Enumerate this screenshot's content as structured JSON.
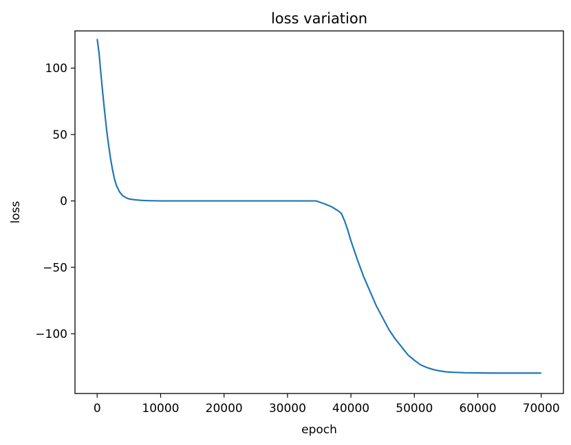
{
  "chart_data": {
    "type": "line",
    "title": "loss variation",
    "xlabel": "epoch",
    "ylabel": "loss",
    "xlim": [
      -3500,
      73500
    ],
    "ylim": [
      -145,
      128
    ],
    "grid": false,
    "x_ticks": [
      0,
      10000,
      20000,
      30000,
      40000,
      50000,
      60000,
      70000
    ],
    "x_tick_labels": [
      "0",
      "10000",
      "20000",
      "30000",
      "40000",
      "50000",
      "60000",
      "70000"
    ],
    "y_ticks": [
      100,
      50,
      0,
      -50,
      -100
    ],
    "y_tick_labels": [
      "100",
      "50",
      "0",
      "−50",
      "−100"
    ],
    "line_color": "#1f77b4",
    "series": [
      {
        "x": [
          0,
          300,
          600,
          900,
          1200,
          1500,
          1800,
          2100,
          2400,
          2700,
          3000,
          3500,
          4000,
          4500,
          5000,
          6000,
          7000,
          8000,
          10000,
          15000,
          20000,
          25000,
          30000,
          34500,
          35000,
          36000,
          37000,
          38000,
          38500,
          39000,
          39500,
          40000,
          41000,
          42000,
          43000,
          44000,
          45000,
          46000,
          47000,
          48000,
          49000,
          50000,
          51000,
          52000,
          53000,
          54000,
          55000,
          56000,
          57000,
          58000,
          60000,
          62000,
          65000,
          67000,
          70000
        ],
        "y": [
          122,
          111,
          95,
          80,
          66,
          53,
          42,
          32,
          24,
          17,
          12,
          7,
          4,
          2.5,
          1.5,
          0.8,
          0.4,
          0.2,
          0,
          0,
          0,
          0,
          0,
          0,
          -0.8,
          -2.5,
          -4.5,
          -7.5,
          -9.5,
          -15,
          -22,
          -30,
          -44,
          -57,
          -68,
          -79,
          -88,
          -97,
          -104,
          -110,
          -116,
          -120,
          -123.5,
          -125.5,
          -127,
          -128,
          -128.7,
          -129,
          -129.2,
          -129.4,
          -129.5,
          -129.6,
          -129.6,
          -129.6,
          -129.6
        ]
      }
    ]
  }
}
